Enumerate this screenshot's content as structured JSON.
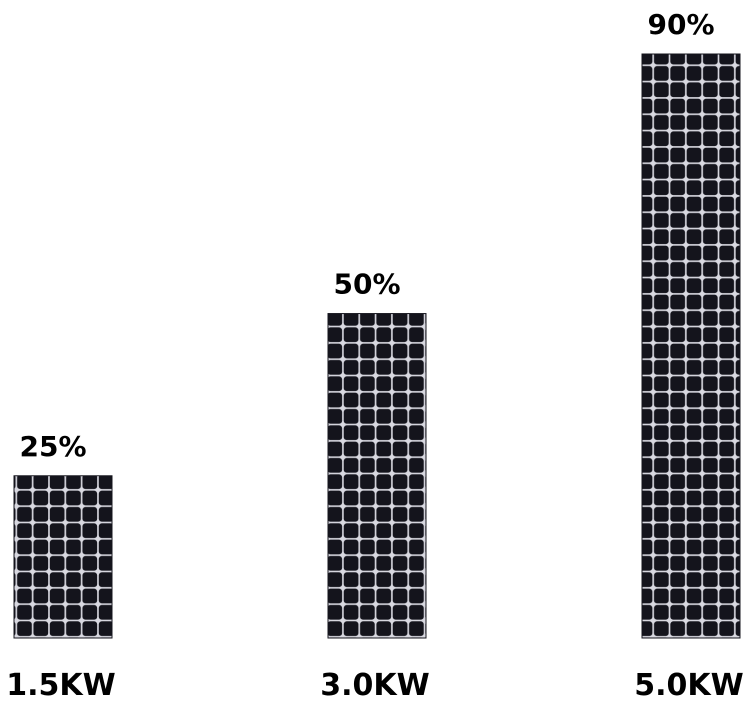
{
  "chart_data": {
    "type": "bar",
    "categories": [
      "1.5KW",
      "3.0KW",
      "5.0KW"
    ],
    "values": [
      25,
      50,
      90
    ],
    "value_labels": [
      "25%",
      "50%",
      "90%"
    ],
    "color": "#14141c"
  }
}
